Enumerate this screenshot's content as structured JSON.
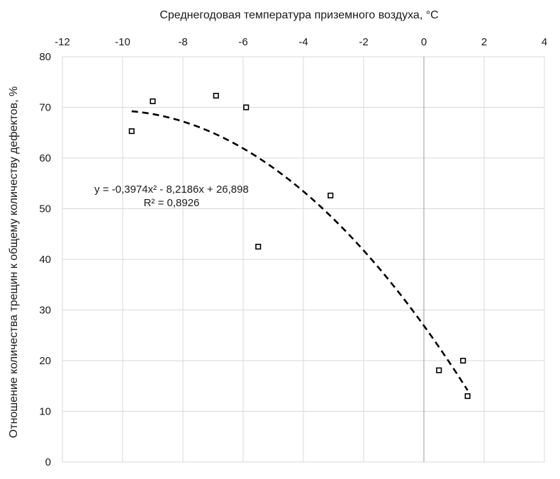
{
  "chart_data": {
    "type": "scatter",
    "xlabel": "Среднегодовая температура приземного воздуха, °C",
    "ylabel": "Отношение количества трещин к общему количеству дефектов, %",
    "xlim": [
      -12,
      4
    ],
    "ylim": [
      0,
      80
    ],
    "x_ticks": [
      -12,
      -10,
      -8,
      -6,
      -4,
      -2,
      0,
      2,
      4
    ],
    "y_ticks": [
      0,
      10,
      20,
      30,
      40,
      50,
      60,
      70,
      80
    ],
    "x_axis_position": "top",
    "grid": true,
    "points": [
      {
        "x": -9.7,
        "y": 65.3
      },
      {
        "x": -9.0,
        "y": 71.2
      },
      {
        "x": -6.9,
        "y": 72.3
      },
      {
        "x": -5.9,
        "y": 70.0
      },
      {
        "x": -5.5,
        "y": 42.5
      },
      {
        "x": -3.1,
        "y": 52.6
      },
      {
        "x": 0.5,
        "y": 18.1
      },
      {
        "x": 1.3,
        "y": 20.0
      },
      {
        "x": 1.45,
        "y": 13.0
      }
    ],
    "trendline": {
      "type": "polynomial",
      "coefficients": [
        -0.3974,
        -8.2186,
        26.898
      ],
      "x_range": [
        -9.7,
        1.45
      ],
      "equation_label": "y = -0,3974x² - 8,2186x + 26,898",
      "r2_label": "R² = 0,8926"
    }
  }
}
